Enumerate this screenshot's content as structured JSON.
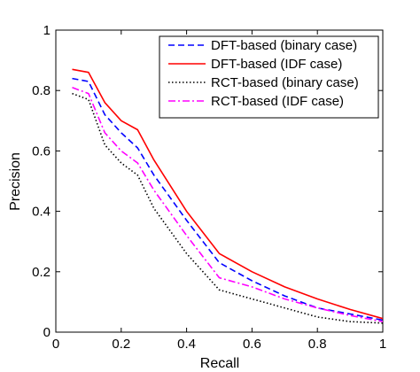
{
  "chart_data": {
    "type": "line",
    "xlabel": "Recall",
    "ylabel": "Precision",
    "xlim": [
      0,
      1
    ],
    "ylim": [
      0,
      1
    ],
    "xticks": [
      0,
      0.2,
      0.4,
      0.6,
      0.8,
      1
    ],
    "yticks": [
      0,
      0.2,
      0.4,
      0.6,
      0.8,
      1
    ],
    "xtick_labels": [
      "0",
      "0.2",
      "0.4",
      "0.6",
      "0.8",
      "1"
    ],
    "ytick_labels": [
      "0",
      "0.2",
      "0.4",
      "0.6",
      "0.8",
      "1"
    ],
    "grid": false,
    "legend_position": "top-right",
    "series": [
      {
        "name": "DFT-based (binary case)",
        "color": "#0000ff",
        "style": "dashed",
        "points": [
          [
            0.05,
            0.84
          ],
          [
            0.1,
            0.83
          ],
          [
            0.15,
            0.72
          ],
          [
            0.2,
            0.66
          ],
          [
            0.25,
            0.61
          ],
          [
            0.3,
            0.52
          ],
          [
            0.4,
            0.37
          ],
          [
            0.5,
            0.23
          ],
          [
            0.6,
            0.17
          ],
          [
            0.7,
            0.12
          ],
          [
            0.8,
            0.08
          ],
          [
            0.9,
            0.06
          ],
          [
            1.0,
            0.04
          ]
        ]
      },
      {
        "name": "DFT-based (IDF case)",
        "color": "#ff0000",
        "style": "solid",
        "points": [
          [
            0.05,
            0.87
          ],
          [
            0.1,
            0.86
          ],
          [
            0.15,
            0.76
          ],
          [
            0.2,
            0.7
          ],
          [
            0.25,
            0.67
          ],
          [
            0.3,
            0.57
          ],
          [
            0.4,
            0.4
          ],
          [
            0.5,
            0.26
          ],
          [
            0.6,
            0.2
          ],
          [
            0.7,
            0.15
          ],
          [
            0.8,
            0.11
          ],
          [
            0.9,
            0.075
          ],
          [
            1.0,
            0.045
          ]
        ]
      },
      {
        "name": "RCT-based (binary case)",
        "color": "#000000",
        "style": "dotted",
        "points": [
          [
            0.05,
            0.79
          ],
          [
            0.1,
            0.77
          ],
          [
            0.15,
            0.62
          ],
          [
            0.2,
            0.56
          ],
          [
            0.25,
            0.52
          ],
          [
            0.3,
            0.41
          ],
          [
            0.4,
            0.26
          ],
          [
            0.5,
            0.14
          ],
          [
            0.6,
            0.11
          ],
          [
            0.7,
            0.08
          ],
          [
            0.8,
            0.05
          ],
          [
            0.9,
            0.035
          ],
          [
            1.0,
            0.03
          ]
        ]
      },
      {
        "name": "RCT-based (IDF case)",
        "color": "#ff00ff",
        "style": "dashdot",
        "points": [
          [
            0.05,
            0.81
          ],
          [
            0.1,
            0.79
          ],
          [
            0.15,
            0.66
          ],
          [
            0.2,
            0.6
          ],
          [
            0.25,
            0.56
          ],
          [
            0.3,
            0.47
          ],
          [
            0.4,
            0.32
          ],
          [
            0.5,
            0.18
          ],
          [
            0.6,
            0.15
          ],
          [
            0.7,
            0.11
          ],
          [
            0.8,
            0.08
          ],
          [
            0.9,
            0.055
          ],
          [
            1.0,
            0.035
          ]
        ]
      }
    ]
  }
}
